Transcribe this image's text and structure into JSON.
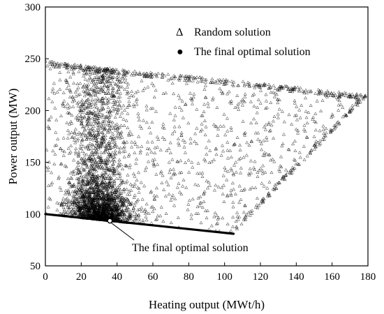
{
  "chart_data": {
    "type": "scatter",
    "title": "",
    "xlabel": "Heating output (MWt/h)",
    "ylabel": "Power output (MW)",
    "xlim": [
      0,
      180
    ],
    "ylim": [
      50,
      300
    ],
    "xticks": [
      0,
      20,
      40,
      60,
      80,
      100,
      120,
      140,
      160,
      180
    ],
    "yticks": [
      50,
      100,
      150,
      200,
      250,
      300
    ],
    "grid": false,
    "legend": {
      "placement": "top-right",
      "entries": [
        {
          "symbol": "Δ",
          "label": "Random solution"
        },
        {
          "symbol": "●",
          "label": "The final optimal solution"
        }
      ]
    },
    "feasible_region": {
      "vertices": [
        [
          0,
          248
        ],
        [
          40,
          240
        ],
        [
          100,
          230
        ],
        [
          140,
          222
        ],
        [
          180,
          215
        ],
        [
          105,
          82
        ],
        [
          0,
          100
        ]
      ],
      "dense_core": {
        "x_range": [
          18,
          45
        ],
        "y_range": [
          95,
          245
        ],
        "peak": [
          30,
          100
        ]
      }
    },
    "lower_boundary": {
      "x": [
        0,
        105
      ],
      "y": [
        100,
        81
      ]
    },
    "optimal_point": {
      "x": 36,
      "y": 93.5
    },
    "annotation": {
      "text": "The final optimal solution",
      "points_to": [
        36,
        93.5
      ]
    },
    "random_solution_count": 4200,
    "marker_color": "#000000"
  }
}
